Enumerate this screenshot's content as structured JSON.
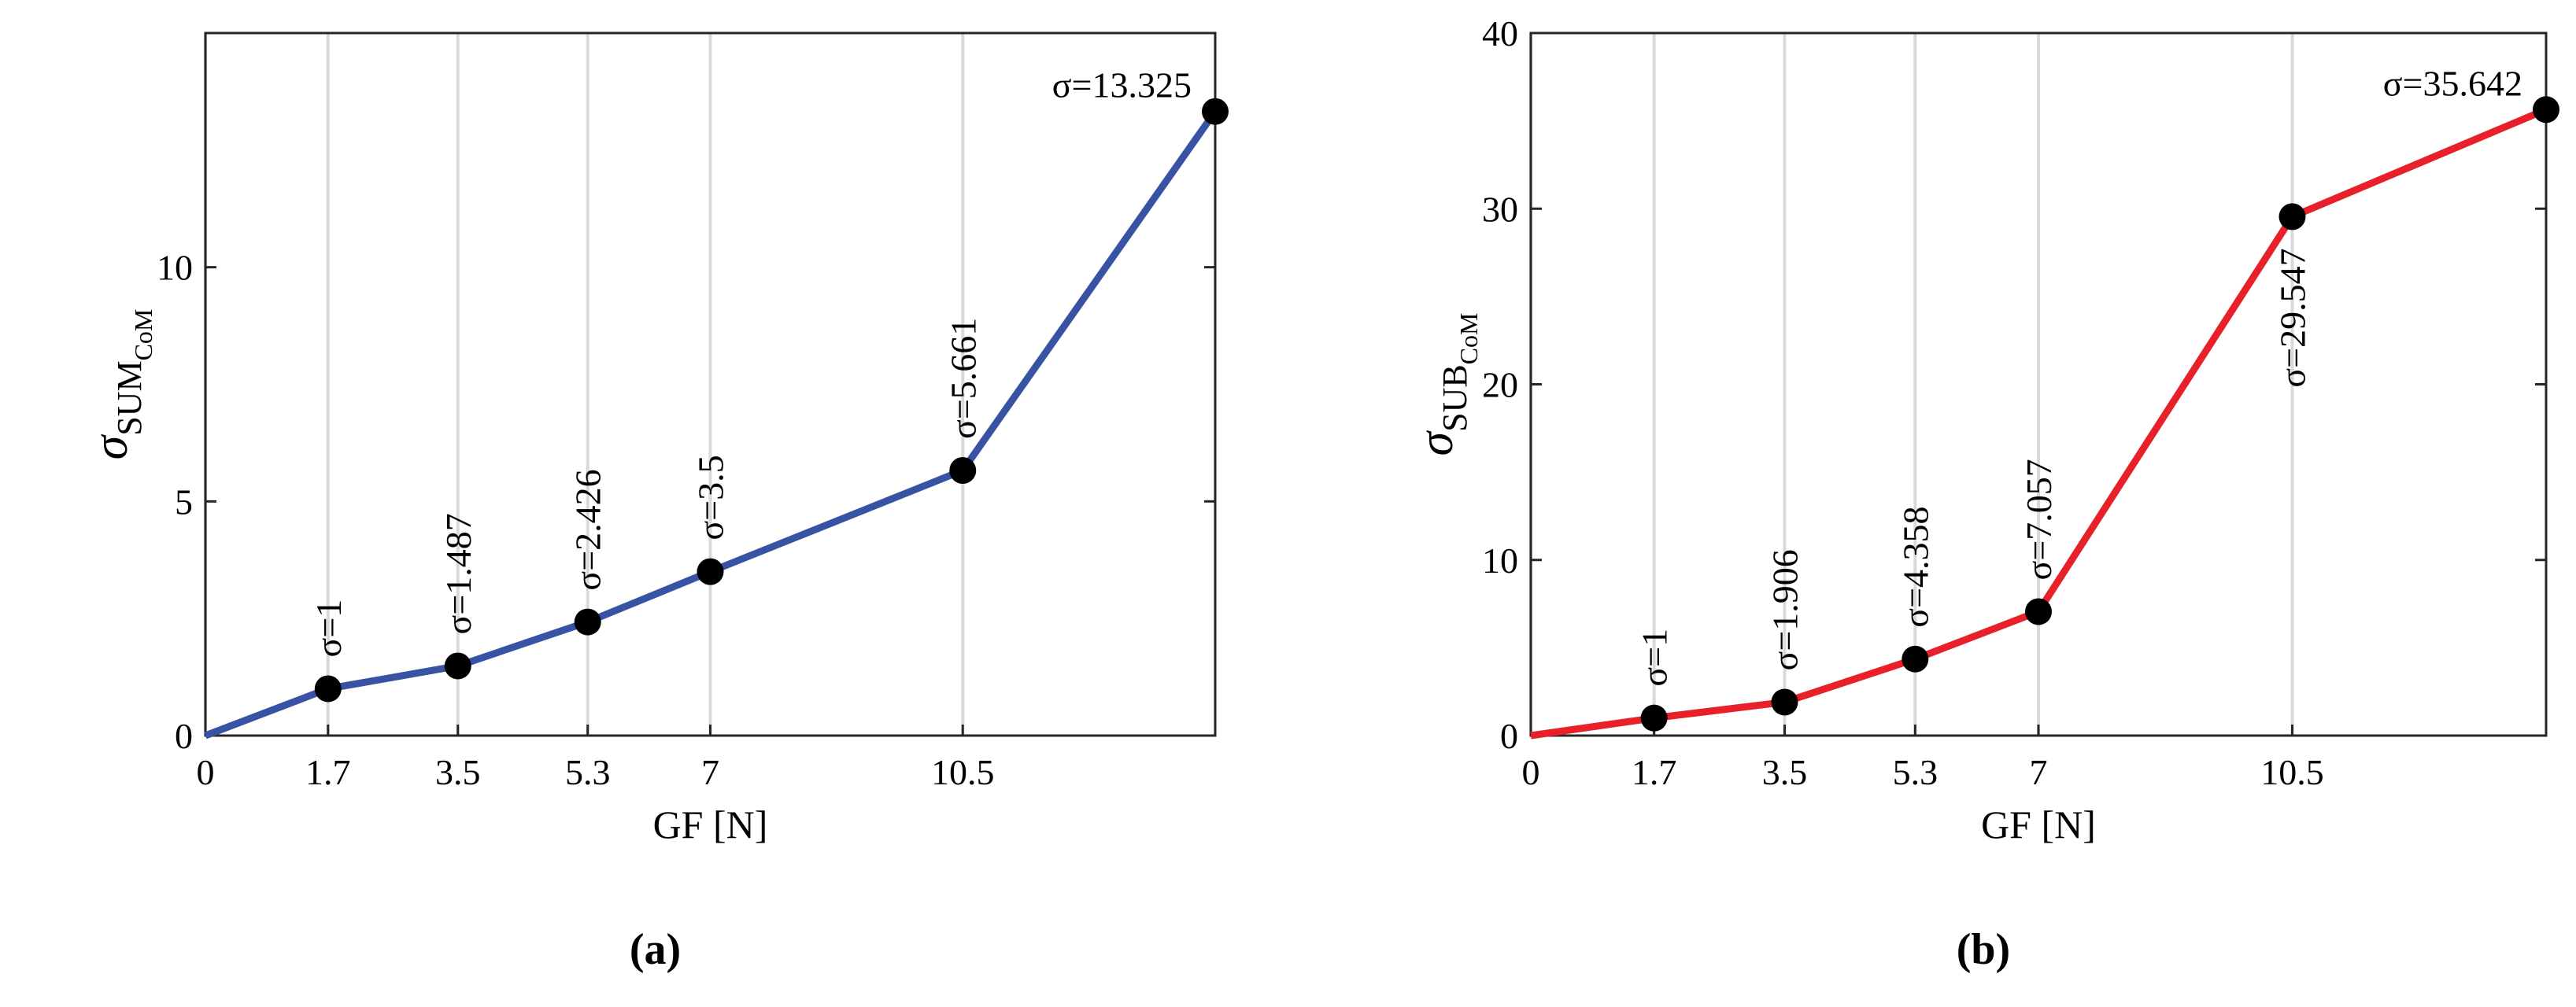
{
  "chart_data": [
    {
      "type": "line",
      "caption": "(a)",
      "xlabel": "GF [N]",
      "ylabel": {
        "main": "σ",
        "sub": "SUM",
        "subsub": "CoM"
      },
      "xlim": [
        0,
        14
      ],
      "xticks": [
        0,
        1.7,
        3.5,
        5.3,
        7,
        10.5
      ],
      "ylim": [
        0,
        15
      ],
      "yticks": [
        0,
        5,
        10
      ],
      "grid": true,
      "series": [
        {
          "color": "#3953a4",
          "x": [
            0,
            1.7,
            3.5,
            5.3,
            7,
            10.5,
            14
          ],
          "values": [
            0,
            1,
            1.487,
            2.426,
            3.5,
            5.661,
            13.325
          ],
          "value_labels": [
            null,
            "σ=1",
            "σ=1.487",
            "σ=2.426",
            "σ=3.5",
            "σ=5.661",
            "σ=13.325"
          ]
        }
      ]
    },
    {
      "type": "line",
      "caption": "(b)",
      "xlabel": "GF [N]",
      "ylabel": {
        "main": "σ",
        "sub": "SUB",
        "subsub": "CoM"
      },
      "xlim": [
        0,
        14
      ],
      "xticks": [
        0,
        1.7,
        3.5,
        5.3,
        7,
        10.5
      ],
      "ylim": [
        0,
        40
      ],
      "yticks": [
        0,
        10,
        20,
        30,
        40
      ],
      "grid": true,
      "series": [
        {
          "color": "#e8202a",
          "x": [
            0,
            1.7,
            3.5,
            5.3,
            7,
            10.5,
            14
          ],
          "values": [
            0,
            1,
            1.906,
            4.358,
            7.057,
            29.547,
            35.642
          ],
          "value_labels": [
            null,
            "σ=1",
            "σ=1.906",
            "σ=4.358",
            "σ=7.057",
            "σ=29.547",
            "σ=35.642"
          ]
        }
      ]
    }
  ]
}
